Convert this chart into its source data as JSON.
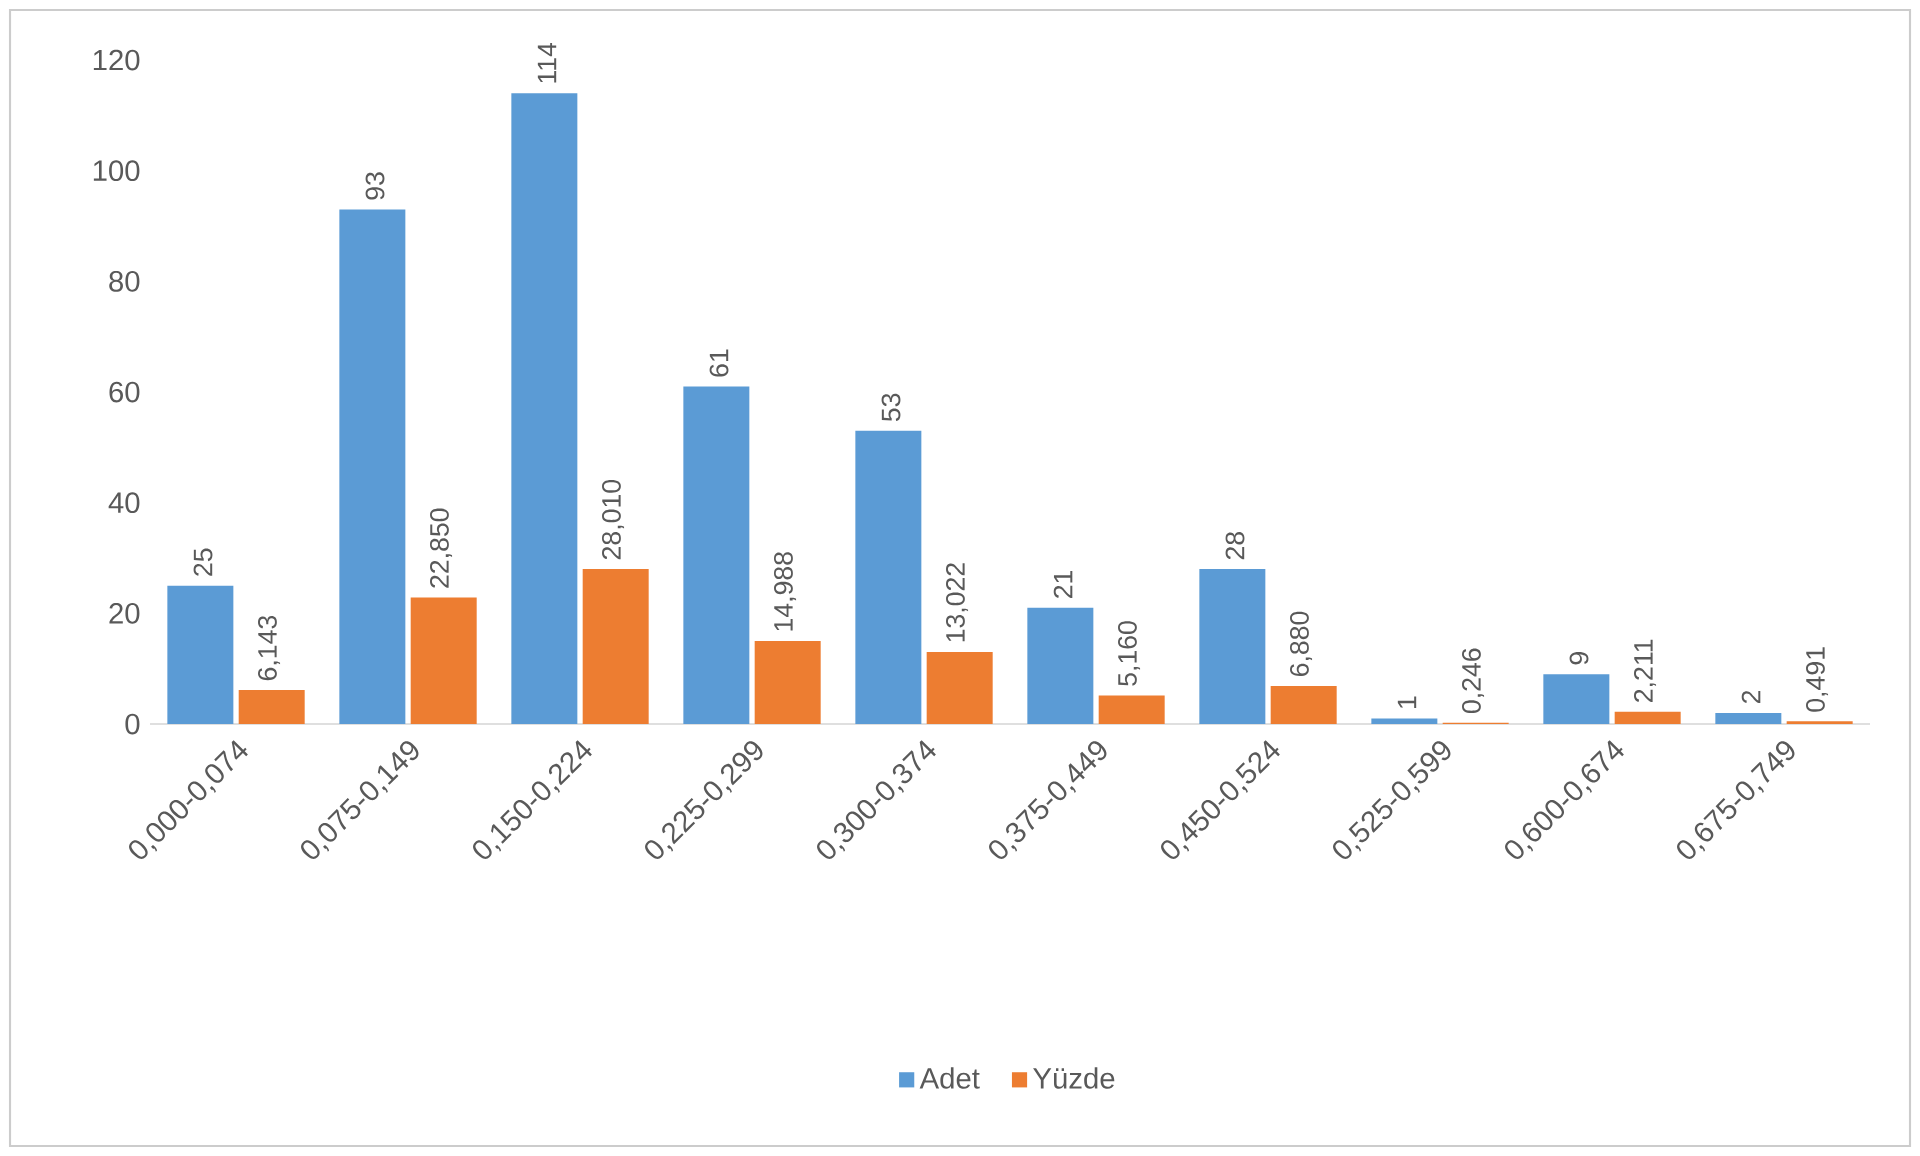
{
  "chart_data": {
    "type": "bar",
    "categories": [
      "0,000-0,074",
      "0,075-0,149",
      "0,150-0,224",
      "0,225-0,299",
      "0,300-0,374",
      "0,375-0,449",
      "0,450-0,524",
      "0,525-0,599",
      "0,600-0,674",
      "0,675-0,749"
    ],
    "series": [
      {
        "name": "Adet",
        "color": "#5b9bd5",
        "values": [
          25,
          93,
          114,
          61,
          53,
          21,
          28,
          1,
          9,
          2
        ],
        "value_labels": [
          "25",
          "93",
          "114",
          "61",
          "53",
          "21",
          "28",
          "1",
          "9",
          "2"
        ]
      },
      {
        "name": "Yüzde",
        "color": "#ed7d31",
        "values": [
          6.143,
          22.85,
          28.01,
          14.988,
          13.022,
          5.16,
          6.88,
          0.246,
          2.211,
          0.491
        ],
        "value_labels": [
          "6,143",
          "22,850",
          "28,010",
          "14,988",
          "13,022",
          "5,160",
          "6,880",
          "0,246",
          "2,211",
          "0,491"
        ]
      }
    ],
    "ylim": [
      0,
      120
    ],
    "yticks": [
      0,
      20,
      40,
      60,
      80,
      100,
      120
    ],
    "legend": "bottom"
  }
}
